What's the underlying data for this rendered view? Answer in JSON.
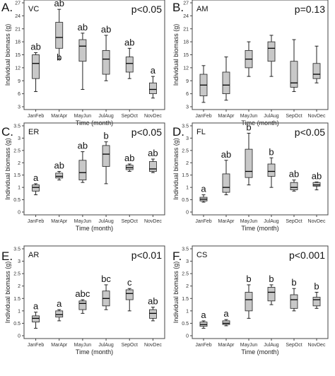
{
  "figure": {
    "xlabel": "Time (month)",
    "ylabel": "Individual biomass (g)",
    "box_color": "#c8c8c8",
    "line_color": "#222222"
  },
  "chart_data": [
    {
      "panel": "A.",
      "type": "boxplot",
      "title": "VC",
      "pvalue": "p<0.05",
      "categories": [
        "JanFeb",
        "MarApr",
        "MayJun",
        "JulAug",
        "SepOct",
        "NovDec"
      ],
      "yticks": [
        3,
        6,
        9,
        12,
        15,
        18,
        21,
        24,
        27
      ],
      "ylim": [
        3,
        27
      ],
      "boxes": [
        {
          "min": 6.5,
          "q1": 9.5,
          "median": 13,
          "q3": 15,
          "max": 15.5
        },
        {
          "min": 14,
          "q1": 16.5,
          "median": 19,
          "q3": 22.5,
          "max": 25.5
        },
        {
          "min": 7,
          "q1": 13.5,
          "median": 17,
          "q3": 18.5,
          "max": 20
        },
        {
          "min": 9,
          "q1": 10.5,
          "median": 14,
          "q3": 16,
          "max": 19.5
        },
        {
          "min": 9.5,
          "q1": 11,
          "median": 13,
          "q3": 14.5,
          "max": 16.5
        },
        {
          "min": 5,
          "q1": 6,
          "median": 7,
          "q3": 8.5,
          "max": 10
        }
      ],
      "letters": [
        "ab",
        "ab",
        "ab",
        "ab",
        "ab",
        "a"
      ],
      "extra_letters": [
        {
          "category": "MarApr",
          "text": "b"
        }
      ]
    },
    {
      "panel": "B.",
      "type": "boxplot",
      "title": "AM",
      "pvalue": "p=0.13",
      "categories": [
        "JanFeb",
        "MarApr",
        "MayJun",
        "JulAug",
        "SepOct",
        "NovDec"
      ],
      "yticks": [
        3,
        6,
        9,
        12,
        15,
        18,
        21,
        24,
        27
      ],
      "ylim": [
        3,
        27
      ],
      "boxes": [
        {
          "min": 4,
          "q1": 5.5,
          "median": 8,
          "q3": 10.5,
          "max": 12.5
        },
        {
          "min": 4.5,
          "q1": 6,
          "median": 8,
          "q3": 11,
          "max": 14.5
        },
        {
          "min": 10,
          "q1": 12,
          "median": 14,
          "q3": 16,
          "max": 18
        },
        {
          "min": 10,
          "q1": 13.5,
          "median": 16.5,
          "q3": 18,
          "max": 19.5
        },
        {
          "min": 6.5,
          "q1": 7.5,
          "median": 8.5,
          "q3": 13.5,
          "max": 18.5
        },
        {
          "min": 8.5,
          "q1": 9.5,
          "median": 10.5,
          "q3": 13,
          "max": 17
        }
      ],
      "letters": []
    },
    {
      "panel": "C.",
      "type": "boxplot",
      "title": "ER",
      "pvalue": "p<0.05",
      "categories": [
        "JanFeb",
        "MarApr",
        "MayJun",
        "JulAug",
        "SepOct",
        "NovDec"
      ],
      "yticks": [
        0,
        0.5,
        1,
        1.5,
        2,
        2.5,
        3,
        3.5
      ],
      "yticklabels": [
        "0",
        "0.5",
        "1",
        "1.5",
        "2",
        "2.5",
        "3",
        "3.5"
      ],
      "ylim": [
        0,
        3.5
      ],
      "boxes": [
        {
          "min": 0.7,
          "q1": 0.85,
          "median": 1.0,
          "q3": 1.1,
          "max": 1.15
        },
        {
          "min": 1.3,
          "q1": 1.38,
          "median": 1.45,
          "q3": 1.58,
          "max": 1.65
        },
        {
          "min": 1.2,
          "q1": 1.3,
          "median": 1.6,
          "q3": 2.1,
          "max": 2.45
        },
        {
          "min": 1.15,
          "q1": 1.85,
          "median": 2.35,
          "q3": 2.7,
          "max": 2.85
        },
        {
          "min": 1.65,
          "q1": 1.72,
          "median": 1.8,
          "q3": 1.9,
          "max": 1.95
        },
        {
          "min": 1.6,
          "q1": 1.65,
          "median": 1.75,
          "q3": 2.05,
          "max": 2.15
        }
      ],
      "letters": [
        "a",
        "ab",
        "ab",
        "b",
        "ab",
        "ab"
      ]
    },
    {
      "panel": "D.",
      "type": "boxplot",
      "title": "FL",
      "pvalue": "p<0.05",
      "categories": [
        "JanFeb",
        "MarApr",
        "MayJun",
        "JulAug",
        "SepOct",
        "NovDec"
      ],
      "yticks": [
        0,
        0.5,
        1,
        1.5,
        2,
        2.5,
        3,
        3.5
      ],
      "yticklabels": [
        "0",
        "0.5",
        "1",
        "1.5",
        "2",
        "2.5",
        "3",
        "3.5"
      ],
      "ylim": [
        0,
        3.5
      ],
      "boxes": [
        {
          "min": 0.4,
          "q1": 0.45,
          "median": 0.52,
          "q3": 0.6,
          "max": 0.7
        },
        {
          "min": 0.7,
          "q1": 0.8,
          "median": 1.0,
          "q3": 1.55,
          "max": 2.1
        },
        {
          "min": 1.1,
          "q1": 1.4,
          "median": 1.65,
          "q3": 2.55,
          "max": 3.2
        },
        {
          "min": 1.0,
          "q1": 1.45,
          "median": 1.65,
          "q3": 1.95,
          "max": 2.2
        },
        {
          "min": 0.85,
          "q1": 0.9,
          "median": 1.0,
          "q3": 1.2,
          "max": 1.3
        },
        {
          "min": 0.9,
          "q1": 1.05,
          "median": 1.1,
          "q3": 1.2,
          "max": 1.22
        }
      ],
      "letters": [
        "a",
        "ab",
        "b",
        "b",
        "ab",
        "ab"
      ]
    },
    {
      "panel": "E.",
      "type": "boxplot",
      "title": "AR",
      "pvalue": "p<0.01",
      "categories": [
        "JanFeb",
        "MarApr",
        "MayJun",
        "JulAug",
        "SepOct",
        "NovDec"
      ],
      "yticks": [
        0,
        0.5,
        1,
        1.5,
        2,
        2.5,
        3,
        3.5
      ],
      "yticklabels": [
        "0",
        "0.5",
        "1",
        "1.5",
        "2",
        "2.5",
        "3",
        "3.5"
      ],
      "ylim": [
        0,
        3.5
      ],
      "boxes": [
        {
          "min": 0.3,
          "q1": 0.55,
          "median": 0.7,
          "q3": 0.8,
          "max": 0.95
        },
        {
          "min": 0.6,
          "q1": 0.75,
          "median": 0.85,
          "q3": 1.0,
          "max": 1.05
        },
        {
          "min": 0.9,
          "q1": 1.05,
          "median": 1.3,
          "q3": 1.4,
          "max": 1.45
        },
        {
          "min": 1.05,
          "q1": 1.2,
          "median": 1.5,
          "q3": 1.8,
          "max": 2.05
        },
        {
          "min": 1.0,
          "q1": 1.45,
          "median": 1.7,
          "q3": 1.85,
          "max": 1.9
        },
        {
          "min": 0.6,
          "q1": 0.7,
          "median": 0.9,
          "q3": 1.05,
          "max": 1.15
        }
      ],
      "letters": [
        "a",
        "a",
        "abc",
        "bc",
        "c",
        "ab"
      ]
    },
    {
      "panel": "F.",
      "type": "boxplot",
      "title": "CS",
      "pvalue": "p<0.001",
      "categories": [
        "JanFeb",
        "MarApr",
        "MayJun",
        "JulAug",
        "SepOct",
        "NovDec"
      ],
      "yticks": [
        0,
        0.5,
        1,
        1.5,
        2,
        2.5,
        3,
        3.5
      ],
      "yticklabels": [
        "0",
        "0.5",
        "1",
        "1.5",
        "2",
        "2.5",
        "3",
        "3.5"
      ],
      "ylim": [
        0,
        3.5
      ],
      "boxes": [
        {
          "min": 0.3,
          "q1": 0.38,
          "median": 0.45,
          "q3": 0.55,
          "max": 0.6
        },
        {
          "min": 0.4,
          "q1": 0.45,
          "median": 0.5,
          "q3": 0.6,
          "max": 0.65
        },
        {
          "min": 0.7,
          "q1": 1.0,
          "median": 1.45,
          "q3": 1.75,
          "max": 2.05
        },
        {
          "min": 1.25,
          "q1": 1.4,
          "median": 1.75,
          "q3": 1.95,
          "max": 2.05
        },
        {
          "min": 1.0,
          "q1": 1.1,
          "median": 1.45,
          "q3": 1.65,
          "max": 1.9
        },
        {
          "min": 1.1,
          "q1": 1.2,
          "median": 1.45,
          "q3": 1.55,
          "max": 1.75
        }
      ],
      "letters": [
        "a",
        "a",
        "b",
        "b",
        "b",
        "b"
      ]
    }
  ]
}
